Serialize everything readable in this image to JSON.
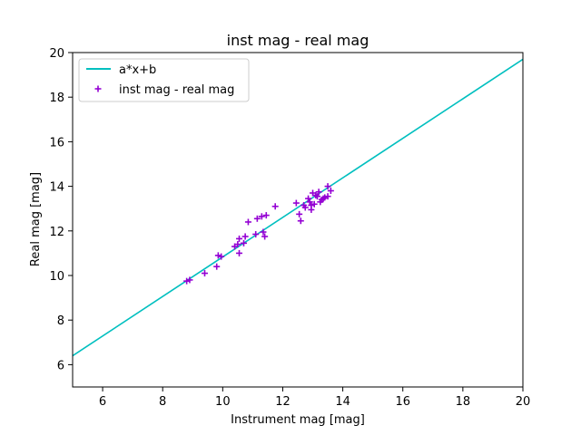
{
  "chart_data": {
    "type": "scatter",
    "title": "inst mag - real mag",
    "xlabel": "Instrument mag [mag]",
    "ylabel": "Real mag [mag]",
    "xlim": [
      5,
      20
    ],
    "ylim": [
      5,
      20
    ],
    "xticks": [
      "6",
      "8",
      "10",
      "12",
      "14",
      "16",
      "18",
      "20"
    ],
    "yticks": [
      "6",
      "8",
      "10",
      "12",
      "14",
      "16",
      "18",
      "20"
    ],
    "grid": false,
    "legend_position": "upper-left",
    "fit_line": {
      "name": "a*x+b",
      "color": "#00bfbf",
      "x": [
        5,
        20
      ],
      "y": [
        6.4,
        19.7
      ]
    },
    "series": [
      {
        "name": "inst mag - real mag",
        "marker": "plus",
        "color": "#9400d3",
        "points": [
          [
            8.8,
            9.75
          ],
          [
            8.9,
            9.8
          ],
          [
            9.4,
            10.1
          ],
          [
            9.8,
            10.4
          ],
          [
            9.85,
            10.9
          ],
          [
            9.95,
            10.85
          ],
          [
            10.4,
            11.3
          ],
          [
            10.5,
            11.4
          ],
          [
            10.55,
            11.0
          ],
          [
            10.55,
            11.65
          ],
          [
            10.7,
            11.45
          ],
          [
            10.75,
            11.75
          ],
          [
            10.85,
            12.4
          ],
          [
            11.1,
            11.85
          ],
          [
            11.15,
            12.55
          ],
          [
            11.3,
            12.65
          ],
          [
            11.35,
            11.95
          ],
          [
            11.4,
            11.75
          ],
          [
            11.45,
            12.7
          ],
          [
            11.75,
            13.1
          ],
          [
            12.45,
            13.25
          ],
          [
            12.55,
            12.75
          ],
          [
            12.6,
            12.45
          ],
          [
            12.7,
            13.15
          ],
          [
            12.75,
            13.05
          ],
          [
            12.85,
            13.45
          ],
          [
            12.9,
            13.3
          ],
          [
            12.95,
            12.95
          ],
          [
            12.95,
            13.15
          ],
          [
            13.0,
            13.7
          ],
          [
            13.05,
            13.2
          ],
          [
            13.1,
            13.6
          ],
          [
            13.15,
            13.55
          ],
          [
            13.2,
            13.75
          ],
          [
            13.25,
            13.3
          ],
          [
            13.3,
            13.4
          ],
          [
            13.35,
            13.45
          ],
          [
            13.4,
            13.5
          ],
          [
            13.5,
            13.55
          ],
          [
            13.5,
            14.0
          ],
          [
            13.6,
            13.8
          ]
        ]
      }
    ]
  }
}
